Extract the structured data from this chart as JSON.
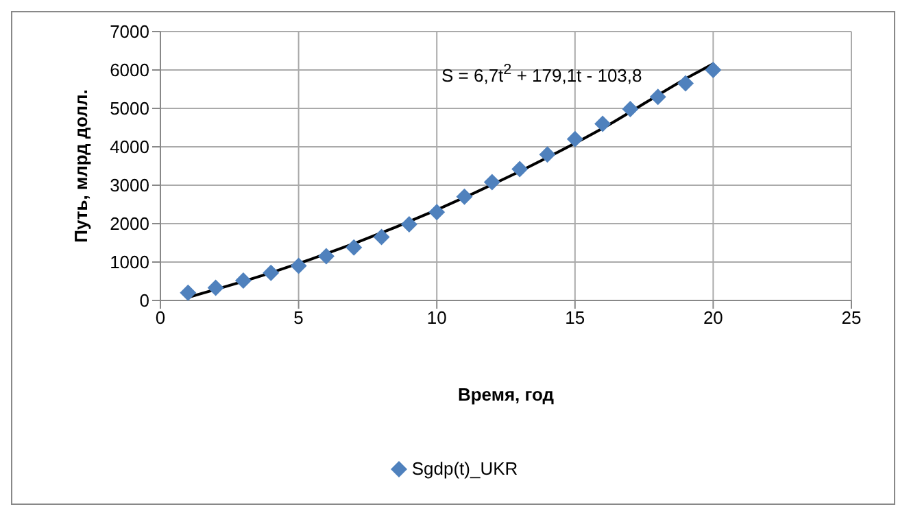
{
  "chart_data": {
    "type": "scatter",
    "xlabel": "Время, год",
    "ylabel": "Путь, млрд долл.",
    "x": [
      1,
      2,
      3,
      4,
      5,
      6,
      7,
      8,
      9,
      10,
      11,
      12,
      13,
      14,
      15,
      16,
      17,
      18,
      19,
      20
    ],
    "series": [
      {
        "name": "Sgdp(t)_UKR",
        "color": "#4f81bd",
        "marker": "diamond",
        "values": [
          200,
          330,
          520,
          720,
          900,
          1150,
          1380,
          1650,
          1980,
          2300,
          2700,
          3080,
          3420,
          3800,
          4200,
          4600,
          4980,
          5300,
          5650,
          6000
        ]
      },
      {
        "type": "line",
        "color": "#000000",
        "x": [
          1,
          4,
          7,
          10,
          13,
          16,
          19,
          20
        ],
        "values": [
          80,
          720,
          1480,
          2360,
          3360,
          4480,
          5770,
          6160
        ]
      }
    ],
    "xlim": [
      0,
      25
    ],
    "xticks": [
      0,
      5,
      10,
      15,
      20,
      25
    ],
    "ylim": [
      0,
      7000
    ],
    "yticks": [
      0,
      1000,
      2000,
      3000,
      4000,
      5000,
      6000,
      7000
    ],
    "grid": true,
    "legend": "bottom",
    "annotations": [
      "S = 6,7t$^{2}$ + 179,1t - 103,8"
    ]
  }
}
